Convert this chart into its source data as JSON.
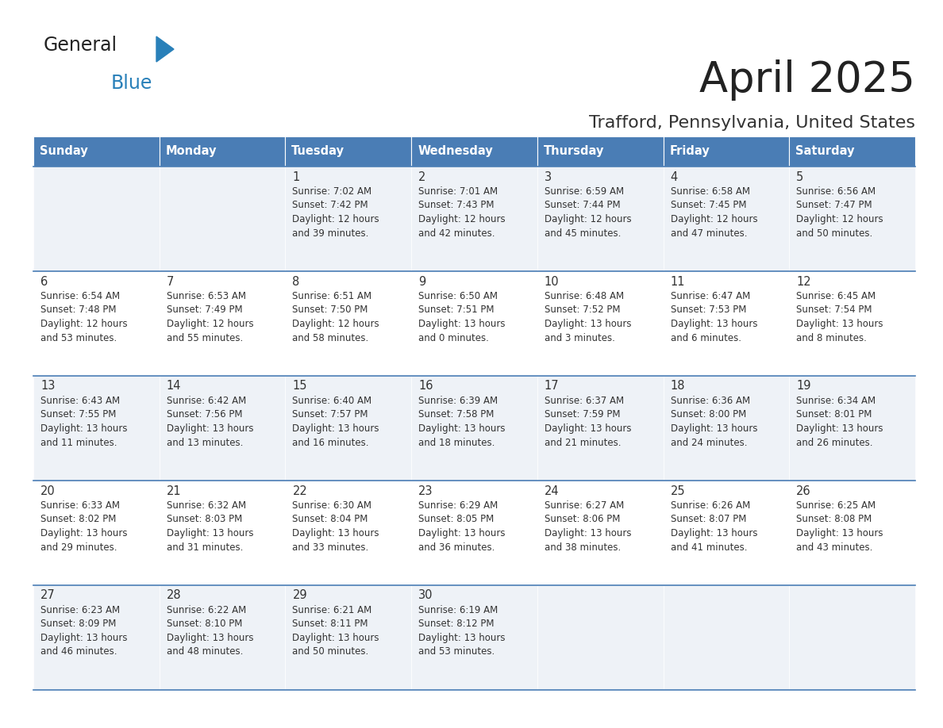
{
  "title": "April 2025",
  "subtitle": "Trafford, Pennsylvania, United States",
  "header_bg": "#4a7db5",
  "header_text": "#ffffff",
  "row_bg_light": "#eef2f7",
  "row_bg_white": "#ffffff",
  "separator_color": "#4a7db5",
  "day_headers": [
    "Sunday",
    "Monday",
    "Tuesday",
    "Wednesday",
    "Thursday",
    "Friday",
    "Saturday"
  ],
  "title_color": "#222222",
  "subtitle_color": "#333333",
  "cell_text_color": "#333333",
  "logo_general_color": "#222222",
  "logo_blue_color": "#2980b9",
  "logo_triangle_color": "#2980b9",
  "days": [
    {
      "date": 1,
      "col": 2,
      "row": 0,
      "sunrise": "7:02 AM",
      "sunset": "7:42 PM",
      "daylight": "12 hours and 39 minutes."
    },
    {
      "date": 2,
      "col": 3,
      "row": 0,
      "sunrise": "7:01 AM",
      "sunset": "7:43 PM",
      "daylight": "12 hours and 42 minutes."
    },
    {
      "date": 3,
      "col": 4,
      "row": 0,
      "sunrise": "6:59 AM",
      "sunset": "7:44 PM",
      "daylight": "12 hours and 45 minutes."
    },
    {
      "date": 4,
      "col": 5,
      "row": 0,
      "sunrise": "6:58 AM",
      "sunset": "7:45 PM",
      "daylight": "12 hours and 47 minutes."
    },
    {
      "date": 5,
      "col": 6,
      "row": 0,
      "sunrise": "6:56 AM",
      "sunset": "7:47 PM",
      "daylight": "12 hours and 50 minutes."
    },
    {
      "date": 6,
      "col": 0,
      "row": 1,
      "sunrise": "6:54 AM",
      "sunset": "7:48 PM",
      "daylight": "12 hours and 53 minutes."
    },
    {
      "date": 7,
      "col": 1,
      "row": 1,
      "sunrise": "6:53 AM",
      "sunset": "7:49 PM",
      "daylight": "12 hours and 55 minutes."
    },
    {
      "date": 8,
      "col": 2,
      "row": 1,
      "sunrise": "6:51 AM",
      "sunset": "7:50 PM",
      "daylight": "12 hours and 58 minutes."
    },
    {
      "date": 9,
      "col": 3,
      "row": 1,
      "sunrise": "6:50 AM",
      "sunset": "7:51 PM",
      "daylight": "13 hours and 0 minutes."
    },
    {
      "date": 10,
      "col": 4,
      "row": 1,
      "sunrise": "6:48 AM",
      "sunset": "7:52 PM",
      "daylight": "13 hours and 3 minutes."
    },
    {
      "date": 11,
      "col": 5,
      "row": 1,
      "sunrise": "6:47 AM",
      "sunset": "7:53 PM",
      "daylight": "13 hours and 6 minutes."
    },
    {
      "date": 12,
      "col": 6,
      "row": 1,
      "sunrise": "6:45 AM",
      "sunset": "7:54 PM",
      "daylight": "13 hours and 8 minutes."
    },
    {
      "date": 13,
      "col": 0,
      "row": 2,
      "sunrise": "6:43 AM",
      "sunset": "7:55 PM",
      "daylight": "13 hours and 11 minutes."
    },
    {
      "date": 14,
      "col": 1,
      "row": 2,
      "sunrise": "6:42 AM",
      "sunset": "7:56 PM",
      "daylight": "13 hours and 13 minutes."
    },
    {
      "date": 15,
      "col": 2,
      "row": 2,
      "sunrise": "6:40 AM",
      "sunset": "7:57 PM",
      "daylight": "13 hours and 16 minutes."
    },
    {
      "date": 16,
      "col": 3,
      "row": 2,
      "sunrise": "6:39 AM",
      "sunset": "7:58 PM",
      "daylight": "13 hours and 18 minutes."
    },
    {
      "date": 17,
      "col": 4,
      "row": 2,
      "sunrise": "6:37 AM",
      "sunset": "7:59 PM",
      "daylight": "13 hours and 21 minutes."
    },
    {
      "date": 18,
      "col": 5,
      "row": 2,
      "sunrise": "6:36 AM",
      "sunset": "8:00 PM",
      "daylight": "13 hours and 24 minutes."
    },
    {
      "date": 19,
      "col": 6,
      "row": 2,
      "sunrise": "6:34 AM",
      "sunset": "8:01 PM",
      "daylight": "13 hours and 26 minutes."
    },
    {
      "date": 20,
      "col": 0,
      "row": 3,
      "sunrise": "6:33 AM",
      "sunset": "8:02 PM",
      "daylight": "13 hours and 29 minutes."
    },
    {
      "date": 21,
      "col": 1,
      "row": 3,
      "sunrise": "6:32 AM",
      "sunset": "8:03 PM",
      "daylight": "13 hours and 31 minutes."
    },
    {
      "date": 22,
      "col": 2,
      "row": 3,
      "sunrise": "6:30 AM",
      "sunset": "8:04 PM",
      "daylight": "13 hours and 33 minutes."
    },
    {
      "date": 23,
      "col": 3,
      "row": 3,
      "sunrise": "6:29 AM",
      "sunset": "8:05 PM",
      "daylight": "13 hours and 36 minutes."
    },
    {
      "date": 24,
      "col": 4,
      "row": 3,
      "sunrise": "6:27 AM",
      "sunset": "8:06 PM",
      "daylight": "13 hours and 38 minutes."
    },
    {
      "date": 25,
      "col": 5,
      "row": 3,
      "sunrise": "6:26 AM",
      "sunset": "8:07 PM",
      "daylight": "13 hours and 41 minutes."
    },
    {
      "date": 26,
      "col": 6,
      "row": 3,
      "sunrise": "6:25 AM",
      "sunset": "8:08 PM",
      "daylight": "13 hours and 43 minutes."
    },
    {
      "date": 27,
      "col": 0,
      "row": 4,
      "sunrise": "6:23 AM",
      "sunset": "8:09 PM",
      "daylight": "13 hours and 46 minutes."
    },
    {
      "date": 28,
      "col": 1,
      "row": 4,
      "sunrise": "6:22 AM",
      "sunset": "8:10 PM",
      "daylight": "13 hours and 48 minutes."
    },
    {
      "date": 29,
      "col": 2,
      "row": 4,
      "sunrise": "6:21 AM",
      "sunset": "8:11 PM",
      "daylight": "13 hours and 50 minutes."
    },
    {
      "date": 30,
      "col": 3,
      "row": 4,
      "sunrise": "6:19 AM",
      "sunset": "8:12 PM",
      "daylight": "13 hours and 53 minutes."
    }
  ]
}
